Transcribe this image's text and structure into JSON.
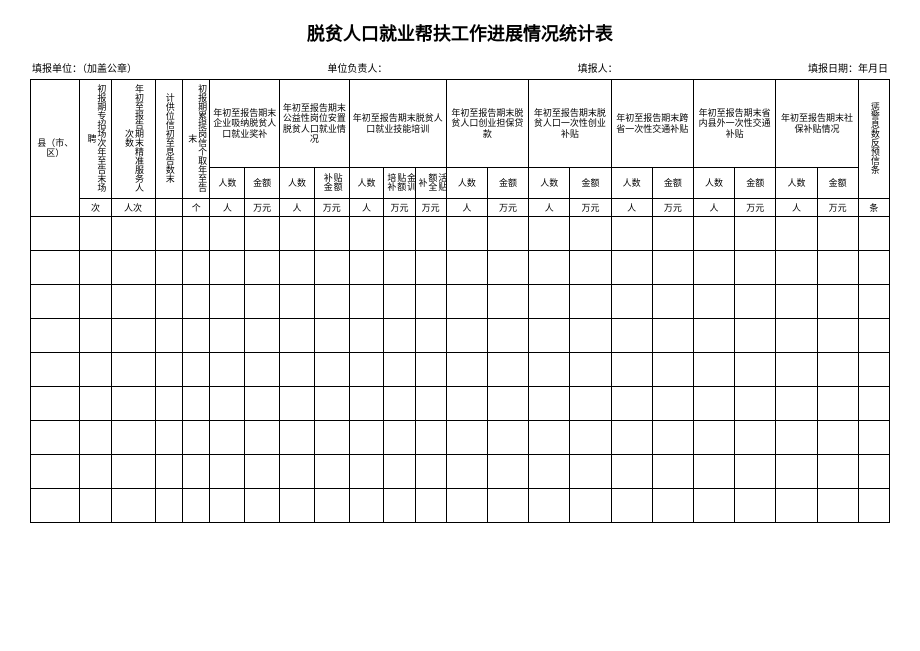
{
  "title": "脱贫人口就业帮扶工作进展情况统计表",
  "meta": {
    "org_label": "填报单位：",
    "org_note": "（加盖公章）",
    "leader_label": "单位负责人：",
    "reporter_label": "填报人：",
    "date_label": "填报日期：",
    "date_value": "年月日"
  },
  "headers": {
    "county": "县（市、区）",
    "col_b": "初报期专招场次年至告末场聘",
    "col_c_top": "年初至报告期末精准服务人次数",
    "col_d": "计供位信初至息告数末",
    "col_e": "初报期累提岗信个取年至告末",
    "grp_f": "年初至报告期末企业吸纳脱贫人口就业奖补",
    "grp_g": "年初至报告期末公益性岗位安置脱贫人口就业情况",
    "grp_h": "年初至报告期末脱贫人口就业技能培训",
    "grp_i": "年初至报告期末脱贫人口创业担保贷款",
    "grp_j": "年初至报告期末脱贫人口一次性创业补贴",
    "grp_k": "年初至报告期末跨省一次性交通补贴",
    "grp_l": "年初至报告期末省内县外一次性交通补贴",
    "grp_m": "年初至报告期末社保补贴情况",
    "col_last": "惩警息数反预信条",
    "sub_people": "人数",
    "sub_amount": "金额",
    "sub_allow": "贴额补金",
    "sub_train_amt": "金训贴额培补",
    "sub_life_amt": "活贴额全补",
    "unit_ci": "次",
    "unit_renci": "人次",
    "unit_ge": "个",
    "unit_ren": "人",
    "unit_wanyuan": "万元",
    "unit_tiao": "条"
  },
  "empty_rows": 9
}
